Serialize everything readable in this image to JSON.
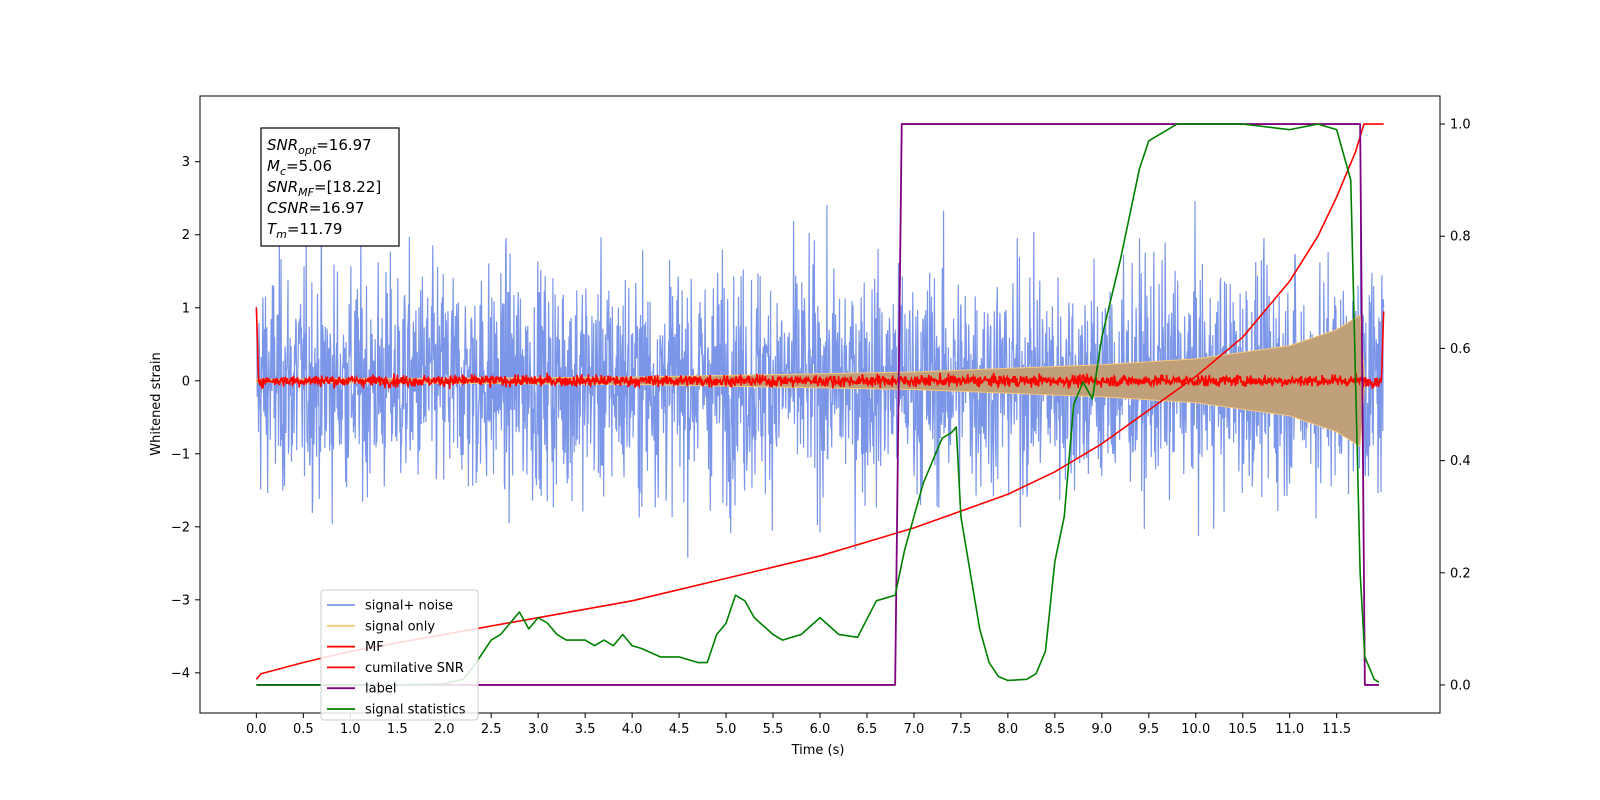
{
  "chart_data": {
    "type": "line",
    "xlabel": "Time (s)",
    "ylabel": "Whitened strain",
    "xlim": [
      -0.6,
      12.6
    ],
    "ylim": [
      -4.55,
      3.9
    ],
    "y2lim": [
      -0.05,
      1.05
    ],
    "xticks": [
      "0.0",
      "0.5",
      "1.0",
      "1.5",
      "2.0",
      "2.5",
      "3.0",
      "3.5",
      "4.0",
      "4.5",
      "5.0",
      "5.5",
      "6.0",
      "6.5",
      "7.0",
      "7.5",
      "8.0",
      "8.5",
      "9.0",
      "9.5",
      "10.0",
      "10.5",
      "11.0",
      "11.5"
    ],
    "yticks": [
      "3",
      "2",
      "1",
      "0",
      "−1",
      "−2",
      "−3",
      "−4"
    ],
    "y2ticks": [
      "1.0",
      "0.8",
      "0.6",
      "0.4",
      "0.2",
      "0.0"
    ],
    "grid": false,
    "legend_placement": "lower-left",
    "annotation": {
      "lines": [
        {
          "base": "SNR",
          "sub": "opt",
          "value": "=16.97"
        },
        {
          "base": "M",
          "sub": "c",
          "value": "=5.06"
        },
        {
          "base": "SNR",
          "sub": "MF",
          "value": "=[18.22]"
        },
        {
          "base": "CSNR",
          "sub": "",
          "value": "=16.97"
        },
        {
          "base": "T",
          "sub": "m",
          "value": "=11.79"
        }
      ]
    },
    "series": [
      {
        "name": "signal+ noise",
        "color": "#7b96e8",
        "axis": "left",
        "kind": "noise",
        "x_range": [
          0.0,
          12.0
        ],
        "amplitude_std": 0.9,
        "y_range": [
          -4.15,
          3.4
        ]
      },
      {
        "name": "signal only",
        "color": "#f5c77e",
        "axis": "left",
        "kind": "chirp-envelope",
        "x_range": [
          0.0,
          11.8
        ],
        "envelope": [
          [
            0.0,
            0.02
          ],
          [
            4.0,
            0.05
          ],
          [
            7.0,
            0.12
          ],
          [
            9.0,
            0.22
          ],
          [
            10.0,
            0.3
          ],
          [
            11.0,
            0.48
          ],
          [
            11.5,
            0.7
          ],
          [
            11.75,
            0.9
          ],
          [
            11.8,
            0.0
          ]
        ]
      },
      {
        "name": "MF",
        "color": "#ff0000",
        "axis": "left",
        "kind": "noise",
        "x_range": [
          0.0,
          12.0
        ],
        "amplitude_std": 0.04,
        "start_value": 1.0,
        "end_value": 0.95
      },
      {
        "name": "cumilative SNR",
        "color": "#ff0000",
        "axis": "right",
        "points": [
          [
            0.0,
            0.01
          ],
          [
            0.05,
            0.02
          ],
          [
            0.5,
            0.04
          ],
          [
            1.0,
            0.06
          ],
          [
            2.0,
            0.09
          ],
          [
            3.0,
            0.12
          ],
          [
            4.0,
            0.15
          ],
          [
            5.0,
            0.19
          ],
          [
            6.0,
            0.23
          ],
          [
            7.0,
            0.28
          ],
          [
            7.5,
            0.31
          ],
          [
            8.0,
            0.34
          ],
          [
            8.5,
            0.38
          ],
          [
            9.0,
            0.43
          ],
          [
            9.5,
            0.49
          ],
          [
            10.0,
            0.55
          ],
          [
            10.5,
            0.62
          ],
          [
            11.0,
            0.72
          ],
          [
            11.3,
            0.8
          ],
          [
            11.5,
            0.87
          ],
          [
            11.7,
            0.95
          ],
          [
            11.79,
            1.0
          ],
          [
            12.0,
            1.0
          ]
        ]
      },
      {
        "name": "label",
        "color": "#800080",
        "axis": "right",
        "points": [
          [
            0.0,
            0.0
          ],
          [
            6.8,
            0.0
          ],
          [
            6.87,
            1.0
          ],
          [
            11.75,
            1.0
          ],
          [
            11.8,
            0.0
          ],
          [
            11.95,
            0.0
          ]
        ]
      },
      {
        "name": "signal statistics",
        "color": "#008000",
        "axis": "right",
        "points": [
          [
            0.0,
            0.0
          ],
          [
            0.5,
            0.0
          ],
          [
            1.0,
            0.0
          ],
          [
            1.5,
            0.0
          ],
          [
            2.0,
            0.002
          ],
          [
            2.2,
            0.01
          ],
          [
            2.3,
            0.03
          ],
          [
            2.5,
            0.08
          ],
          [
            2.6,
            0.09
          ],
          [
            2.7,
            0.11
          ],
          [
            2.8,
            0.13
          ],
          [
            2.9,
            0.1
          ],
          [
            3.0,
            0.12
          ],
          [
            3.1,
            0.11
          ],
          [
            3.2,
            0.09
          ],
          [
            3.3,
            0.08
          ],
          [
            3.5,
            0.08
          ],
          [
            3.6,
            0.07
          ],
          [
            3.7,
            0.08
          ],
          [
            3.8,
            0.07
          ],
          [
            3.9,
            0.09
          ],
          [
            4.0,
            0.07
          ],
          [
            4.1,
            0.065
          ],
          [
            4.3,
            0.05
          ],
          [
            4.5,
            0.05
          ],
          [
            4.7,
            0.04
          ],
          [
            4.8,
            0.04
          ],
          [
            4.9,
            0.09
          ],
          [
            5.0,
            0.11
          ],
          [
            5.1,
            0.16
          ],
          [
            5.2,
            0.15
          ],
          [
            5.3,
            0.12
          ],
          [
            5.5,
            0.09
          ],
          [
            5.6,
            0.08
          ],
          [
            5.8,
            0.09
          ],
          [
            6.0,
            0.12
          ],
          [
            6.2,
            0.09
          ],
          [
            6.4,
            0.085
          ],
          [
            6.6,
            0.15
          ],
          [
            6.8,
            0.16
          ],
          [
            6.9,
            0.24
          ],
          [
            7.0,
            0.3
          ],
          [
            7.1,
            0.36
          ],
          [
            7.2,
            0.4
          ],
          [
            7.3,
            0.44
          ],
          [
            7.4,
            0.45
          ],
          [
            7.45,
            0.46
          ],
          [
            7.5,
            0.3
          ],
          [
            7.6,
            0.2
          ],
          [
            7.7,
            0.1
          ],
          [
            7.8,
            0.04
          ],
          [
            7.9,
            0.015
          ],
          [
            8.0,
            0.008
          ],
          [
            8.2,
            0.01
          ],
          [
            8.3,
            0.02
          ],
          [
            8.4,
            0.06
          ],
          [
            8.5,
            0.22
          ],
          [
            8.6,
            0.3
          ],
          [
            8.7,
            0.5
          ],
          [
            8.8,
            0.54
          ],
          [
            8.9,
            0.51
          ],
          [
            9.0,
            0.62
          ],
          [
            9.1,
            0.69
          ],
          [
            9.2,
            0.76
          ],
          [
            9.3,
            0.84
          ],
          [
            9.4,
            0.92
          ],
          [
            9.5,
            0.97
          ],
          [
            9.7,
            0.99
          ],
          [
            9.8,
            1.0
          ],
          [
            10.0,
            1.0
          ],
          [
            10.5,
            1.0
          ],
          [
            11.0,
            0.99
          ],
          [
            11.3,
            1.0
          ],
          [
            11.5,
            0.99
          ],
          [
            11.65,
            0.9
          ],
          [
            11.75,
            0.2
          ],
          [
            11.8,
            0.05
          ],
          [
            11.9,
            0.01
          ],
          [
            11.95,
            0.005
          ]
        ]
      }
    ]
  }
}
